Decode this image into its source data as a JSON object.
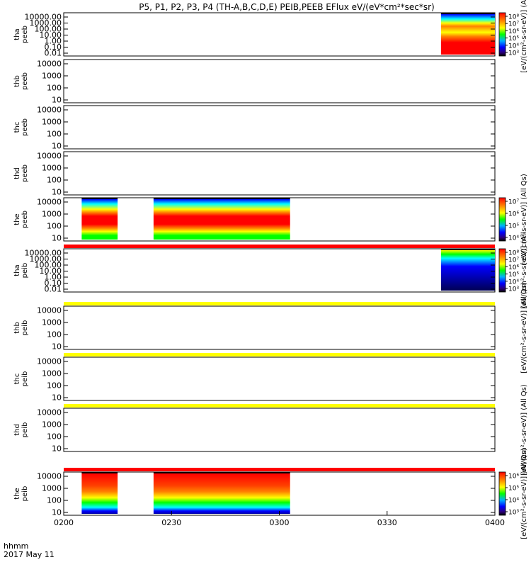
{
  "title": "P5, P1, P2, P3, P4 (TH-A,B,C,D,E) PEIB,PEEB EFlux eV/(eV*cm²*sec*sr)",
  "footer": {
    "time_label": "hhmm",
    "date_label": "2017 May 11"
  },
  "colors": {
    "red": "#ff0000",
    "orange_red": "#ff4000",
    "orange": "#ff8000",
    "yellow": "#ffff00",
    "green": "#00ff00",
    "cyan": "#00ffff",
    "blue": "#0000ff",
    "navy": "#0000aa",
    "white": "#ffffff",
    "black": "#000000"
  },
  "chart_data": {
    "type": "heatmap",
    "x_axis": {
      "range": [
        "0200",
        "0400"
      ],
      "ticks": [
        "0200",
        "0230",
        "0300",
        "0330",
        "0400"
      ]
    },
    "panels": [
      {
        "ylabel": [
          "tha",
          "peeb"
        ],
        "ytick_labels": [
          "10000.00",
          "1000.00",
          "100.00",
          "10.00",
          "1.00",
          "0.10",
          "0.01"
        ],
        "colorbar": {
          "label": "[eV/(cm²-s-sr-eV)] (All",
          "tick_labels": [
            "10⁸",
            "10⁷",
            "10⁶",
            "10⁵",
            "10⁴",
            "10³"
          ]
        },
        "data_intervals": [
          [
            "0345",
            "0400"
          ]
        ]
      },
      {
        "ylabel": [
          "thb",
          "peeb"
        ],
        "ytick_labels": [
          "10000",
          "1000",
          "100",
          "10"
        ],
        "data_intervals": []
      },
      {
        "ylabel": [
          "thc",
          "peeb"
        ],
        "ytick_labels": [
          "10000",
          "1000",
          "100",
          "10"
        ],
        "data_intervals": []
      },
      {
        "ylabel": [
          "thd",
          "peeb"
        ],
        "ytick_labels": [
          "10000",
          "1000",
          "100",
          "10"
        ],
        "data_intervals": []
      },
      {
        "ylabel": [
          "the",
          "peeb"
        ],
        "ytick_labels": [
          "10000",
          "1000",
          "100",
          "10"
        ],
        "colorbar": {
          "label": "[eV/(cm²-s-sr-eV)] (All Qs)",
          "tick_labels": [
            "10⁷",
            "10⁶",
            "10⁵",
            "10⁴"
          ]
        },
        "data_intervals": [
          [
            "0205",
            "0215"
          ],
          [
            "0225",
            "0303"
          ]
        ]
      },
      {
        "ylabel": [
          "tha",
          "peib"
        ],
        "ytick_labels": [
          "10000.00",
          "1000.00",
          "100.00",
          "10.00",
          "1.00",
          "0.10",
          "0.01"
        ],
        "colorbar": {
          "label": "[eV/(cm²-s-sr-eV)] (All",
          "tick_labels": [
            "10⁸",
            "10⁷",
            "10⁶",
            "10⁵",
            "10⁴",
            "10³"
          ]
        },
        "data_intervals": [
          [
            "0345",
            "0400"
          ]
        ]
      },
      {
        "ylabel": [
          "thb",
          "peib"
        ],
        "ytick_labels": [
          "10000",
          "1000",
          "100",
          "10"
        ],
        "colorbar": {
          "label": "[eV/(cm²-s-sr-eV)] (All Qs)",
          "tick_labels": []
        },
        "data_intervals": []
      },
      {
        "ylabel": [
          "thc",
          "peib"
        ],
        "ytick_labels": [
          "10000",
          "1000",
          "100",
          "10"
        ],
        "data_intervals": []
      },
      {
        "ylabel": [
          "thd",
          "peib"
        ],
        "ytick_labels": [
          "10000",
          "1000",
          "100",
          "10"
        ],
        "colorbar": {
          "label": "[eV/(cm²-s-sr-eV)] (All Qs)",
          "tick_labels": []
        },
        "data_intervals": []
      },
      {
        "ylabel": [
          "the",
          "peib"
        ],
        "ytick_labels": [
          "10000",
          "1000",
          "100",
          "10"
        ],
        "colorbar": {
          "label": "[eV/(cm²-s-sr-eV)] (All Qs)",
          "tick_labels": [
            "10⁶",
            "10⁵",
            "10⁴",
            "10³"
          ]
        },
        "data_intervals": [
          [
            "0205",
            "0215"
          ],
          [
            "0225",
            "0303"
          ]
        ]
      }
    ],
    "flag_bars": [
      {
        "after_panel": 4,
        "color": "red"
      },
      {
        "after_panel": 5,
        "color": "yellow"
      },
      {
        "after_panel": 6,
        "color": "yellow"
      },
      {
        "after_panel": 7,
        "color": "yellow"
      },
      {
        "after_panel": 8,
        "color": "red"
      }
    ]
  }
}
